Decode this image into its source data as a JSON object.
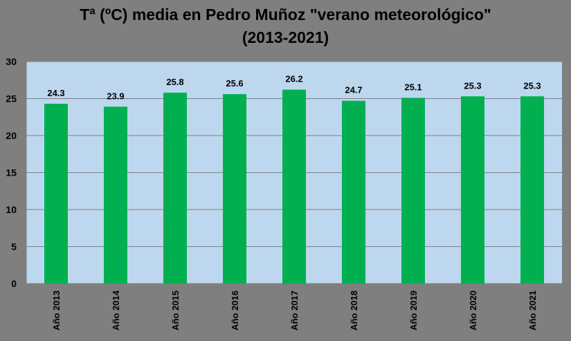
{
  "chart_data": {
    "type": "bar",
    "title": "Tª (ºC) media en Pedro Muñoz \"verano meteorológico\"",
    "subtitle": "(2013-2021)",
    "categories": [
      "Año 2013",
      "Año 2014",
      "Año 2015",
      "Año 2016",
      "Año 2017",
      "Año 2018",
      "Año 2019",
      "Año 2020",
      "Año 2021"
    ],
    "values": [
      24.3,
      23.9,
      25.8,
      25.6,
      26.2,
      24.7,
      25.1,
      25.3,
      25.3
    ],
    "data_labels": [
      "24.3",
      "23.9",
      "25.8",
      "25.6",
      "26.2",
      "24.7",
      "25.1",
      "25.3",
      "25.3"
    ],
    "ylim": [
      0,
      30
    ],
    "yticks": [
      0,
      5,
      10,
      15,
      20,
      25,
      30
    ],
    "xlabel": "",
    "ylabel": "",
    "grid": true,
    "legend": "none",
    "colors": {
      "bar": "#00b050",
      "plot_background": "#bdd7ee",
      "page_background": "#7f7f7f",
      "gridline": "#7f7f7f",
      "text": "#000000"
    }
  }
}
